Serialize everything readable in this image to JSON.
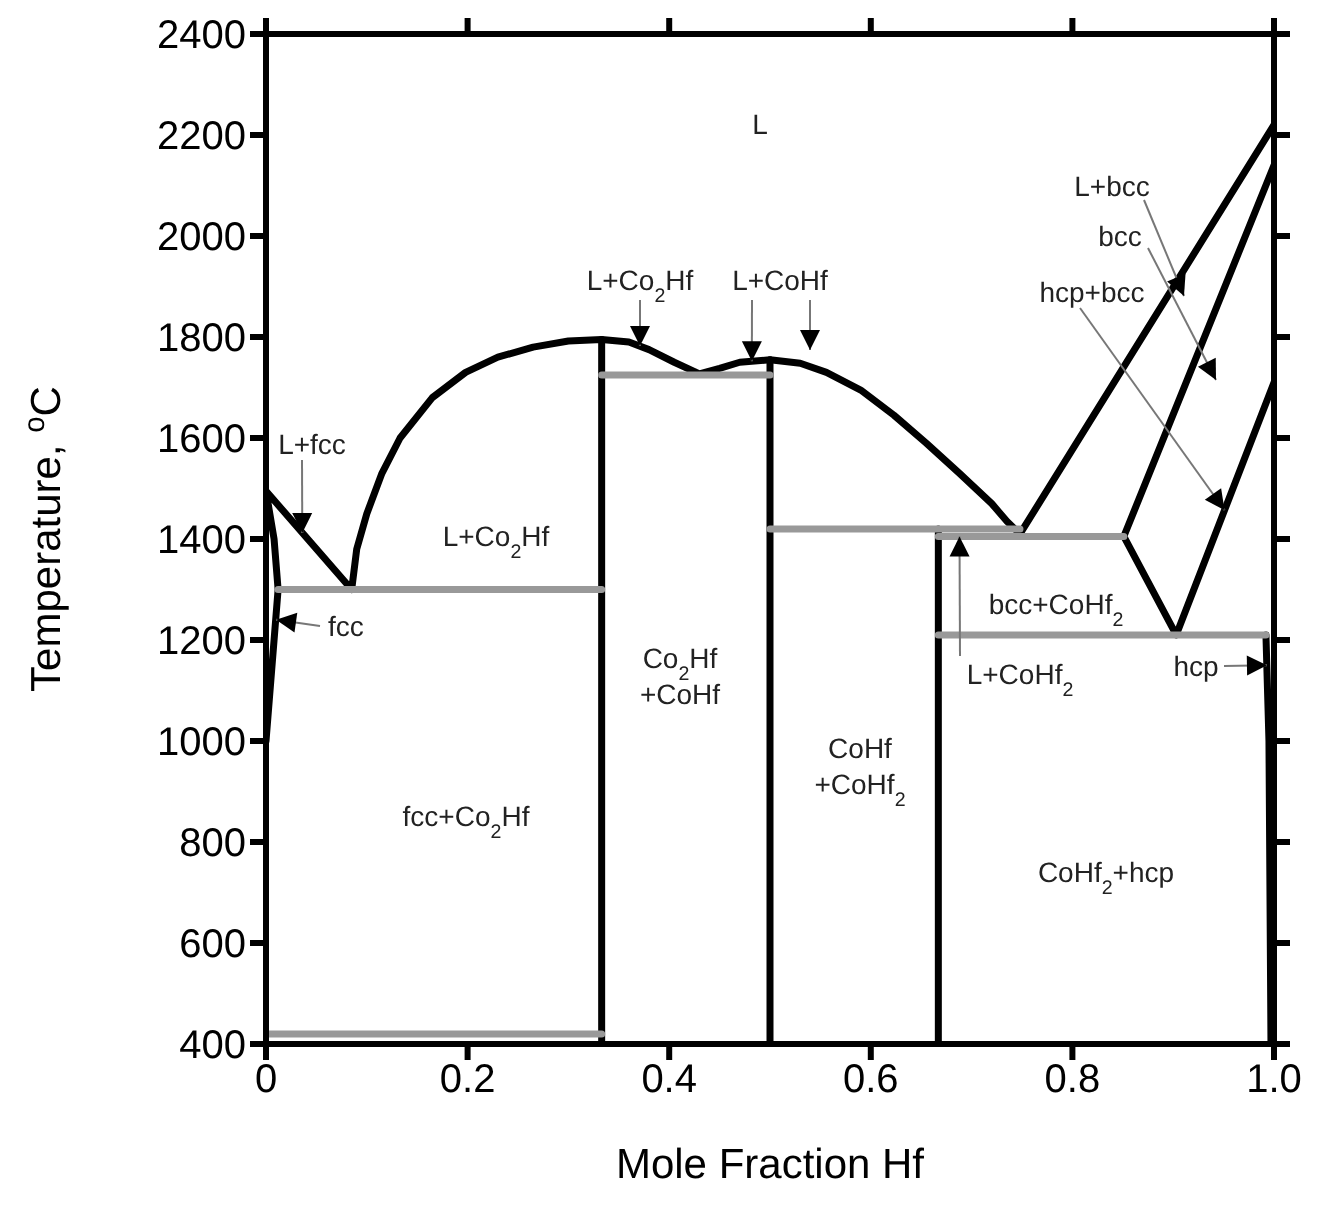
{
  "chart_data": {
    "type": "line",
    "xlabel": "Mole Fraction Hf",
    "ylabel": "Temperature, $^{o}$C",
    "xlim": [
      0,
      1
    ],
    "xticks": [
      0,
      0.2,
      0.4,
      0.6,
      0.8,
      {
        "value": 1,
        "label": "1.0"
      }
    ],
    "ylim": [
      400,
      2400
    ],
    "yticks": [
      400,
      600,
      800,
      1000,
      1200,
      1400,
      1600,
      1800,
      2000,
      2200,
      2400
    ],
    "series": [
      {
        "color": "#000000",
        "x": [
          0,
          0.008,
          0.012,
          0.008,
          0,
          0.085,
          0.09,
          0.1,
          0.115,
          0.133,
          0.165,
          0.198,
          0.23,
          0.265,
          0.3,
          0.333,
          0.36,
          0.38,
          0.405,
          0.43,
          0.45,
          0.47,
          0.5,
          0.53,
          0.556,
          0.59,
          0.623,
          0.655,
          0.688,
          0.72,
          0.735,
          0.748,
          1
        ],
        "values": [
          1000,
          1200,
          1300,
          1400,
          1495,
          1300,
          1380,
          1450,
          1530,
          1600,
          1680,
          1730,
          1760,
          1780,
          1792,
          1795,
          1790,
          1775,
          1750,
          1727,
          1738,
          1750,
          1755,
          1748,
          1730,
          1695,
          1645,
          1590,
          1530,
          1470,
          1435,
          1410,
          2220
        ]
      },
      {
        "color": "#000000",
        "x": [
          1,
          0.851,
          0.903,
          1
        ],
        "values": [
          2140,
          1405,
          1210,
          1710
        ]
      },
      {
        "color": "#000000",
        "x": [
          0.992,
          0.995,
          0.997
        ],
        "values": [
          1210,
          1000,
          400
        ]
      },
      {
        "color": "#000000",
        "x": [
          0.333,
          0.333
        ],
        "values": [
          400,
          1795
        ]
      },
      {
        "color": "#000000",
        "x": [
          0.5,
          0.5
        ],
        "values": [
          400,
          1755
        ]
      },
      {
        "color": "#000000",
        "x": [
          0.667,
          0.667
        ],
        "values": [
          400,
          1420
        ]
      },
      {
        "color": "#999999",
        "x": [
          0.012,
          0.333
        ],
        "values": [
          1300,
          1300
        ]
      },
      {
        "color": "#999999",
        "x": [
          0.333,
          0.5
        ],
        "values": [
          1725,
          1725
        ]
      },
      {
        "color": "#999999",
        "x": [
          0.5,
          0.748
        ],
        "values": [
          1420,
          1420
        ]
      },
      {
        "color": "#999999",
        "x": [
          0.667,
          0.851
        ],
        "values": [
          1405,
          1405
        ]
      },
      {
        "color": "#999999",
        "x": [
          0.667,
          0.992
        ],
        "values": [
          1210,
          1210
        ]
      },
      {
        "color": "#999999",
        "x": [
          0,
          0.333
        ],
        "values": [
          420,
          420
        ]
      }
    ],
    "annotations": [
      "L",
      {
        "text": "L+fcc",
        "x": 0.036,
        "y": 1412
      },
      {
        "text": "fcc",
        "x": 0.01,
        "y": 1240
      },
      "L+Co$_{2}$Hf",
      {
        "text": "L+Co$_{2}$Hf",
        "x": 0.371,
        "y": 1782
      },
      {
        "text": "L+CoHf",
        "x": 0.482,
        "y": 1752
      },
      "L+bcc",
      "bcc",
      {
        "text": "hcp+bcc",
        "x": 0.951,
        "y": 1457
      },
      "bcc+CoHf$_{2}$",
      {
        "text": "L+CoHf$_{2}$",
        "x": 0.688,
        "y": 1405
      },
      {
        "text": "hcp",
        "x": 0.993,
        "y": 1150
      },
      "Co$_{2}$Hf\n+CoHf",
      "CoHf\n+CoHf$_{2}$",
      "fcc+Co$_{2}$Hf",
      "CoHf$_{2}$+hcp"
    ]
  }
}
